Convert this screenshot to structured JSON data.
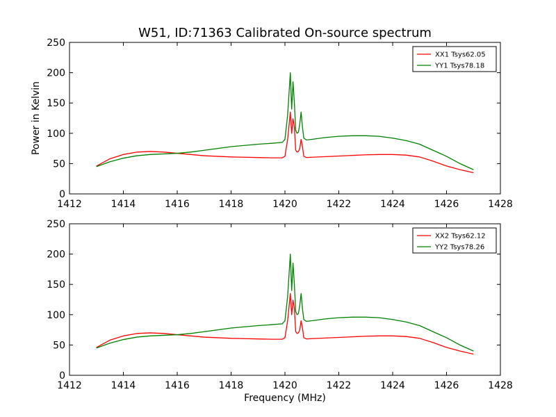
{
  "title": "W51, ID:71363 Calibrated On-source spectrum",
  "colors": {
    "xx": "#ff0000",
    "yy": "#008000"
  },
  "chart_data": [
    {
      "type": "line",
      "title": "W51, ID:71363 Calibrated On-source spectrum",
      "xlabel": "",
      "ylabel": "Power in Kelvin",
      "xlim": [
        1412,
        1428
      ],
      "ylim": [
        0,
        250
      ],
      "xticks": [
        1412,
        1414,
        1416,
        1418,
        1420,
        1422,
        1424,
        1426,
        1428
      ],
      "yticks": [
        0,
        50,
        100,
        150,
        200,
        250
      ],
      "legend_position": "top-right",
      "series": [
        {
          "name": "XX1 Tsys62.05",
          "color": "#ff0000",
          "x": [
            1413.0,
            1413.5,
            1414.0,
            1414.5,
            1415.0,
            1415.5,
            1416.0,
            1416.5,
            1417.0,
            1417.5,
            1418.0,
            1418.5,
            1419.0,
            1419.5,
            1419.9,
            1420.0,
            1420.1,
            1420.2,
            1420.25,
            1420.3,
            1420.35,
            1420.4,
            1420.45,
            1420.5,
            1420.55,
            1420.6,
            1420.65,
            1420.7,
            1420.8,
            1421.0,
            1421.5,
            1422.0,
            1422.5,
            1423.0,
            1423.5,
            1424.0,
            1424.5,
            1425.0,
            1425.5,
            1426.0,
            1426.5,
            1427.0
          ],
          "y": [
            46,
            58,
            65,
            69,
            70,
            69,
            67,
            65,
            63,
            62,
            61,
            60.5,
            60,
            59.5,
            59.5,
            62,
            90,
            135,
            100,
            124,
            110,
            72,
            69,
            70,
            75,
            90,
            78,
            62,
            60,
            60.5,
            61.5,
            62.5,
            63.5,
            64.5,
            65,
            65,
            64,
            61,
            54,
            46,
            40,
            35
          ]
        },
        {
          "name": "YY1 Tsys78.18",
          "color": "#008000",
          "x": [
            1413.0,
            1413.5,
            1414.0,
            1414.5,
            1415.0,
            1415.5,
            1416.0,
            1416.5,
            1417.0,
            1417.5,
            1418.0,
            1418.5,
            1419.0,
            1419.5,
            1419.9,
            1420.0,
            1420.1,
            1420.2,
            1420.25,
            1420.3,
            1420.35,
            1420.4,
            1420.45,
            1420.5,
            1420.55,
            1420.6,
            1420.65,
            1420.7,
            1420.8,
            1421.0,
            1421.5,
            1422.0,
            1422.5,
            1423.0,
            1423.5,
            1424.0,
            1424.5,
            1425.0,
            1425.5,
            1426.0,
            1426.5,
            1427.0
          ],
          "y": [
            45,
            53,
            59,
            63,
            65,
            66,
            67,
            69,
            72,
            75,
            78,
            80,
            82,
            83.5,
            85,
            90,
            130,
            200,
            140,
            185,
            150,
            105,
            100,
            102,
            115,
            135,
            110,
            92,
            89,
            90,
            93,
            95,
            96,
            96,
            95,
            92,
            88,
            82,
            72,
            62,
            50,
            40
          ]
        }
      ]
    },
    {
      "type": "line",
      "title": "",
      "xlabel": "Frequency (MHz)",
      "ylabel": "",
      "xlim": [
        1412,
        1428
      ],
      "ylim": [
        0,
        250
      ],
      "xticks": [
        1412,
        1414,
        1416,
        1418,
        1420,
        1422,
        1424,
        1426,
        1428
      ],
      "yticks": [
        0,
        50,
        100,
        150,
        200,
        250
      ],
      "legend_position": "top-right",
      "series": [
        {
          "name": "XX2 Tsys62.12",
          "color": "#ff0000",
          "x": [
            1413.0,
            1413.5,
            1414.0,
            1414.5,
            1415.0,
            1415.5,
            1416.0,
            1416.5,
            1417.0,
            1417.5,
            1418.0,
            1418.5,
            1419.0,
            1419.5,
            1419.9,
            1420.0,
            1420.1,
            1420.2,
            1420.25,
            1420.3,
            1420.35,
            1420.4,
            1420.45,
            1420.5,
            1420.55,
            1420.6,
            1420.65,
            1420.7,
            1420.8,
            1421.0,
            1421.5,
            1422.0,
            1422.5,
            1423.0,
            1423.5,
            1424.0,
            1424.5,
            1425.0,
            1425.5,
            1426.0,
            1426.5,
            1427.0
          ],
          "y": [
            46,
            58,
            65,
            69,
            70,
            69,
            67,
            65,
            63,
            62,
            61,
            60.5,
            60,
            59.5,
            59.5,
            62,
            90,
            135,
            100,
            124,
            110,
            72,
            69,
            70,
            75,
            90,
            78,
            62,
            60,
            60.5,
            61.5,
            62.5,
            63.5,
            64.5,
            65,
            65,
            64,
            61,
            54,
            46,
            40,
            35
          ]
        },
        {
          "name": "YY2 Tsys78.26",
          "color": "#008000",
          "x": [
            1413.0,
            1413.5,
            1414.0,
            1414.5,
            1415.0,
            1415.5,
            1416.0,
            1416.5,
            1417.0,
            1417.5,
            1418.0,
            1418.5,
            1419.0,
            1419.5,
            1419.9,
            1420.0,
            1420.1,
            1420.2,
            1420.25,
            1420.3,
            1420.35,
            1420.4,
            1420.45,
            1420.5,
            1420.55,
            1420.6,
            1420.65,
            1420.7,
            1420.8,
            1421.0,
            1421.5,
            1422.0,
            1422.5,
            1423.0,
            1423.5,
            1424.0,
            1424.5,
            1425.0,
            1425.5,
            1426.0,
            1426.5,
            1427.0
          ],
          "y": [
            45,
            53,
            59,
            63,
            65,
            66,
            67,
            69,
            72,
            75,
            78,
            80,
            82,
            83.5,
            85,
            90,
            130,
            200,
            140,
            185,
            150,
            105,
            100,
            102,
            115,
            135,
            110,
            92,
            89,
            90,
            93,
            95,
            96,
            96,
            95,
            92,
            88,
            82,
            72,
            62,
            50,
            40
          ]
        }
      ]
    }
  ]
}
